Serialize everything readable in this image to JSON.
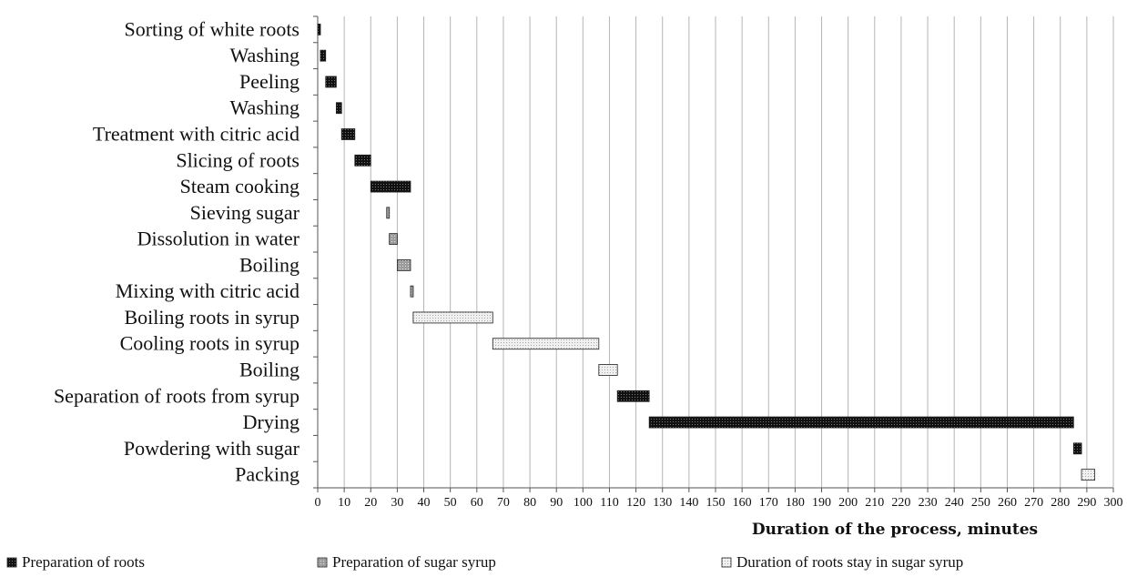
{
  "chart_data": {
    "type": "gantt-bar",
    "title": "",
    "xlabel": "Duration of the process, minutes",
    "ylabel": "",
    "xlim": [
      0,
      300
    ],
    "x_ticks": [
      0,
      10,
      20,
      30,
      40,
      50,
      60,
      70,
      80,
      90,
      100,
      110,
      120,
      130,
      140,
      150,
      160,
      170,
      180,
      190,
      200,
      210,
      220,
      230,
      240,
      250,
      260,
      270,
      280,
      290,
      300
    ],
    "grid": "vertical",
    "legend_position": "bottom",
    "series": [
      {
        "name": "Preparation of roots",
        "color": "#1a1a1a",
        "pattern": "dark-dots"
      },
      {
        "name": "Preparation of sugar syrup",
        "color": "#9a9a9a",
        "pattern": "grey-dots"
      },
      {
        "name": "Duration of roots stay in sugar syrup",
        "color": "#e8e8e8",
        "pattern": "light-dots"
      }
    ],
    "tasks": [
      {
        "label": "Sorting of white roots",
        "start": 0,
        "end": 1,
        "series": 0
      },
      {
        "label": "Washing",
        "start": 1,
        "end": 3,
        "series": 0
      },
      {
        "label": "Peeling",
        "start": 3,
        "end": 7,
        "series": 0
      },
      {
        "label": "Washing",
        "start": 7,
        "end": 9,
        "series": 0
      },
      {
        "label": "Treatment with citric acid",
        "start": 9,
        "end": 14,
        "series": 0
      },
      {
        "label": "Slicing of roots",
        "start": 14,
        "end": 20,
        "series": 0
      },
      {
        "label": "Steam cooking",
        "start": 20,
        "end": 35,
        "series": 0
      },
      {
        "label": "Sieving sugar",
        "start": 26,
        "end": 27,
        "series": 1
      },
      {
        "label": "Dissolution in water",
        "start": 27,
        "end": 30,
        "series": 1
      },
      {
        "label": "Boiling",
        "start": 30,
        "end": 35,
        "series": 1
      },
      {
        "label": "Mixing with citric acid",
        "start": 35,
        "end": 36,
        "series": 1
      },
      {
        "label": "Boiling roots in syrup",
        "start": 36,
        "end": 66,
        "series": 2
      },
      {
        "label": "Cooling roots in syrup",
        "start": 66,
        "end": 106,
        "series": 2
      },
      {
        "label": "Boiling",
        "start": 106,
        "end": 113,
        "series": 2
      },
      {
        "label": "Separation of roots from syrup",
        "start": 113,
        "end": 125,
        "series": 0
      },
      {
        "label": "Drying",
        "start": 125,
        "end": 285,
        "series": 0
      },
      {
        "label": "Powdering with sugar",
        "start": 285,
        "end": 288,
        "series": 0
      },
      {
        "label": "Packing",
        "start": 288,
        "end": 293,
        "series": 2
      }
    ]
  }
}
